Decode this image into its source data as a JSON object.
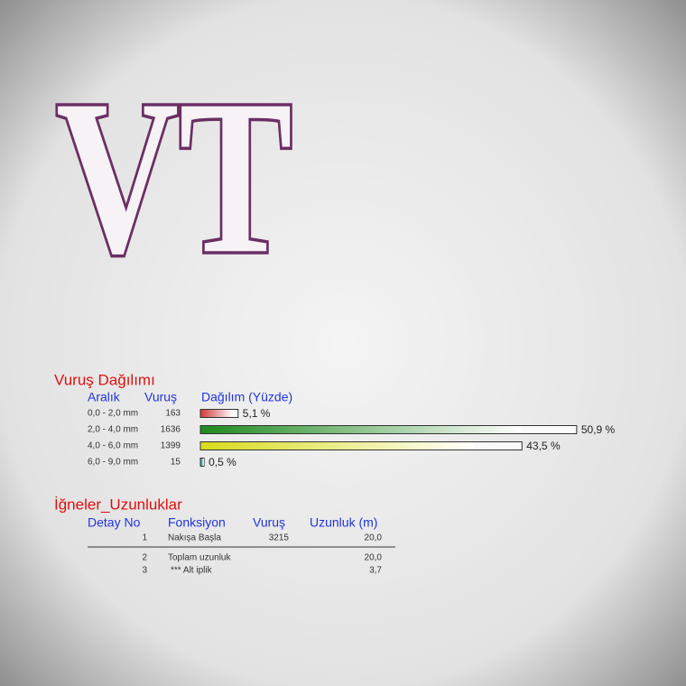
{
  "design_text": "VT",
  "stitch_distribution": {
    "title": "Vuruş Dağılımı",
    "headers": [
      "Aralık",
      "Vuruş",
      "Dağılım (Yüzde)"
    ],
    "rows": [
      {
        "range": "0,0 - 2,0 mm",
        "stitches": 163,
        "percent": 5.1,
        "percent_label": "5,1 %",
        "color": "#d23a3a"
      },
      {
        "range": "2,0 - 4,0 mm",
        "stitches": 1636,
        "percent": 50.9,
        "percent_label": "50,9 %",
        "color": "#1f8a1f"
      },
      {
        "range": "4,0 - 6,0 mm",
        "stitches": 1399,
        "percent": 43.5,
        "percent_label": "43,5 %",
        "color": "#d8dc1c"
      },
      {
        "range": "6,0 - 9,0 mm",
        "stitches": 15,
        "percent": 0.5,
        "percent_label": "0,5 %",
        "color": "#2a8c8c"
      }
    ]
  },
  "needle_lengths": {
    "title": "İğneler_Uzunluklar",
    "headers": [
      "Detay No",
      "Fonksiyon",
      "Vuruş",
      "Uzunluk (m)"
    ],
    "rows": [
      {
        "no": 1,
        "function": "Nakışa Başla",
        "stitches": 3215,
        "length": "20,0"
      },
      {
        "no": 2,
        "function": "Toplam uzunluk",
        "length": "20,0"
      },
      {
        "no": 3,
        "function": "*** Alt iplik",
        "length": "3,7"
      }
    ]
  }
}
